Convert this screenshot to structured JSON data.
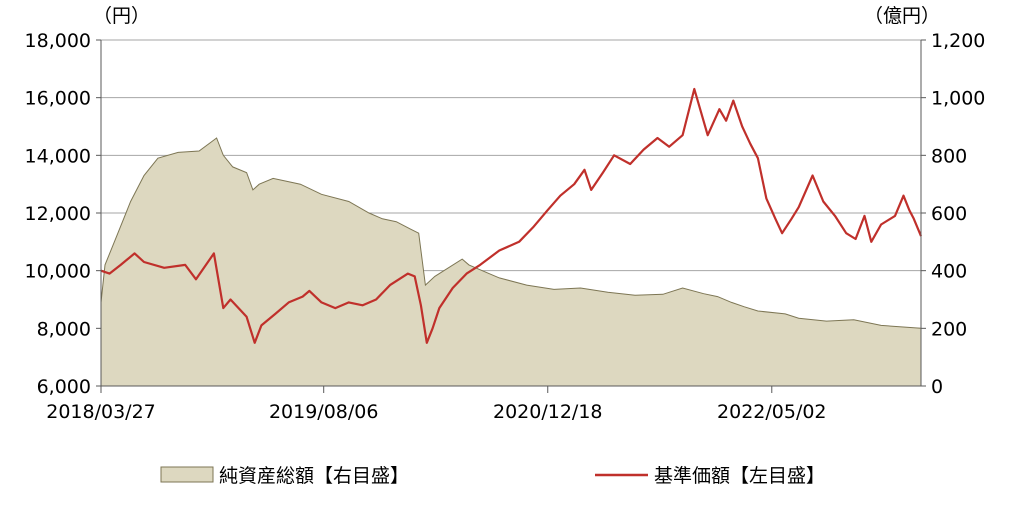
{
  "chart_data": {
    "type": "line",
    "left_unit": "（円）",
    "right_unit": "（億円）",
    "left_axis": {
      "min": 6000,
      "max": 18000,
      "ticks": [
        "6,000",
        "8,000",
        "10,000",
        "12,000",
        "14,000",
        "16,000",
        "18,000"
      ]
    },
    "right_axis": {
      "min": 0,
      "max": 1200,
      "ticks": [
        "0",
        "200",
        "400",
        "600",
        "800",
        "1,000",
        "1,200"
      ]
    },
    "x_range": [
      "2018-03-27",
      "2023-03-31"
    ],
    "x_ticks": [
      "2018/03/27",
      "2019/08/06",
      "2020/12/18",
      "2022/05/02"
    ],
    "legend_placement": "bottom",
    "series": [
      {
        "name": "純資産総額【右目盛】",
        "kind": "area",
        "axis": "right",
        "color": "#ddd8c0",
        "edge_color": "#7d7654",
        "points": [
          [
            "2018-03-27",
            290
          ],
          [
            "2018-04-05",
            420
          ],
          [
            "2018-05-01",
            520
          ],
          [
            "2018-06-01",
            640
          ],
          [
            "2018-07-01",
            730
          ],
          [
            "2018-08-01",
            790
          ],
          [
            "2018-09-15",
            810
          ],
          [
            "2018-11-01",
            815
          ],
          [
            "2018-12-10",
            860
          ],
          [
            "2018-12-25",
            800
          ],
          [
            "2019-01-15",
            760
          ],
          [
            "2019-02-15",
            740
          ],
          [
            "2019-03-01",
            680
          ],
          [
            "2019-03-15",
            700
          ],
          [
            "2019-04-15",
            720
          ],
          [
            "2019-05-15",
            710
          ],
          [
            "2019-06-15",
            700
          ],
          [
            "2019-08-01",
            665
          ],
          [
            "2019-10-01",
            640
          ],
          [
            "2019-11-15",
            600
          ],
          [
            "2019-12-15",
            580
          ],
          [
            "2020-01-15",
            570
          ],
          [
            "2020-02-15",
            545
          ],
          [
            "2020-03-05",
            530
          ],
          [
            "2020-03-20",
            350
          ],
          [
            "2020-04-10",
            380
          ],
          [
            "2020-06-10",
            440
          ],
          [
            "2020-06-25",
            420
          ],
          [
            "2020-08-01",
            395
          ],
          [
            "2020-09-01",
            375
          ],
          [
            "2020-11-01",
            350
          ],
          [
            "2021-01-01",
            335
          ],
          [
            "2021-03-01",
            340
          ],
          [
            "2021-05-01",
            325
          ],
          [
            "2021-07-01",
            315
          ],
          [
            "2021-09-01",
            318
          ],
          [
            "2021-10-15",
            340
          ],
          [
            "2021-12-01",
            320
          ],
          [
            "2022-01-01",
            310
          ],
          [
            "2022-02-01",
            290
          ],
          [
            "2022-03-01",
            275
          ],
          [
            "2022-04-01",
            260
          ],
          [
            "2022-06-01",
            250
          ],
          [
            "2022-07-01",
            235
          ],
          [
            "2022-09-01",
            225
          ],
          [
            "2022-11-01",
            230
          ],
          [
            "2023-01-01",
            210
          ],
          [
            "2023-03-31",
            200
          ]
        ]
      },
      {
        "name": "基準価額【左目盛】",
        "kind": "line",
        "axis": "left",
        "color": "#c0302b",
        "points": [
          [
            "2018-03-27",
            10000
          ],
          [
            "2018-04-15",
            9900
          ],
          [
            "2018-05-10",
            10200
          ],
          [
            "2018-06-10",
            10600
          ],
          [
            "2018-07-01",
            10300
          ],
          [
            "2018-08-15",
            10100
          ],
          [
            "2018-10-01",
            10200
          ],
          [
            "2018-10-25",
            9700
          ],
          [
            "2018-12-04",
            10600
          ],
          [
            "2018-12-25",
            8700
          ],
          [
            "2019-01-10",
            9000
          ],
          [
            "2019-02-15",
            8400
          ],
          [
            "2019-03-05",
            7500
          ],
          [
            "2019-03-20",
            8100
          ],
          [
            "2019-04-20",
            8500
          ],
          [
            "2019-05-20",
            8900
          ],
          [
            "2019-06-20",
            9100
          ],
          [
            "2019-07-05",
            9300
          ],
          [
            "2019-08-01",
            8900
          ],
          [
            "2019-09-01",
            8700
          ],
          [
            "2019-10-01",
            8900
          ],
          [
            "2019-11-01",
            8800
          ],
          [
            "2019-12-01",
            9000
          ],
          [
            "2020-01-01",
            9500
          ],
          [
            "2020-02-10",
            9900
          ],
          [
            "2020-02-25",
            9800
          ],
          [
            "2020-03-10",
            8800
          ],
          [
            "2020-03-23",
            7500
          ],
          [
            "2020-04-05",
            8000
          ],
          [
            "2020-04-20",
            8700
          ],
          [
            "2020-05-20",
            9400
          ],
          [
            "2020-06-20",
            9900
          ],
          [
            "2020-07-20",
            10200
          ],
          [
            "2020-09-01",
            10700
          ],
          [
            "2020-10-15",
            11000
          ],
          [
            "2020-11-15",
            11500
          ],
          [
            "2020-12-18",
            12100
          ],
          [
            "2021-01-15",
            12600
          ],
          [
            "2021-02-15",
            13000
          ],
          [
            "2021-03-10",
            13500
          ],
          [
            "2021-03-25",
            12800
          ],
          [
            "2021-04-20",
            13400
          ],
          [
            "2021-05-15",
            14000
          ],
          [
            "2021-06-20",
            13700
          ],
          [
            "2021-07-20",
            14200
          ],
          [
            "2021-08-20",
            14600
          ],
          [
            "2021-09-15",
            14300
          ],
          [
            "2021-10-15",
            14700
          ],
          [
            "2021-11-10",
            16300
          ],
          [
            "2021-11-25",
            15500
          ],
          [
            "2021-12-10",
            14700
          ],
          [
            "2022-01-05",
            15600
          ],
          [
            "2022-01-20",
            15200
          ],
          [
            "2022-02-05",
            15900
          ],
          [
            "2022-02-25",
            15000
          ],
          [
            "2022-03-15",
            14400
          ],
          [
            "2022-04-01",
            13900
          ],
          [
            "2022-04-20",
            12500
          ],
          [
            "2022-05-10",
            11800
          ],
          [
            "2022-05-25",
            11300
          ],
          [
            "2022-06-15",
            11800
          ],
          [
            "2022-07-01",
            12200
          ],
          [
            "2022-08-01",
            13300
          ],
          [
            "2022-08-25",
            12400
          ],
          [
            "2022-09-20",
            11900
          ],
          [
            "2022-10-15",
            11300
          ],
          [
            "2022-11-05",
            11100
          ],
          [
            "2022-11-25",
            11900
          ],
          [
            "2022-12-10",
            11000
          ],
          [
            "2023-01-01",
            11600
          ],
          [
            "2023-02-01",
            11900
          ],
          [
            "2023-02-20",
            12600
          ],
          [
            "2023-03-05",
            12100
          ],
          [
            "2023-03-15",
            11800
          ],
          [
            "2023-03-31",
            11200
          ]
        ]
      }
    ]
  }
}
